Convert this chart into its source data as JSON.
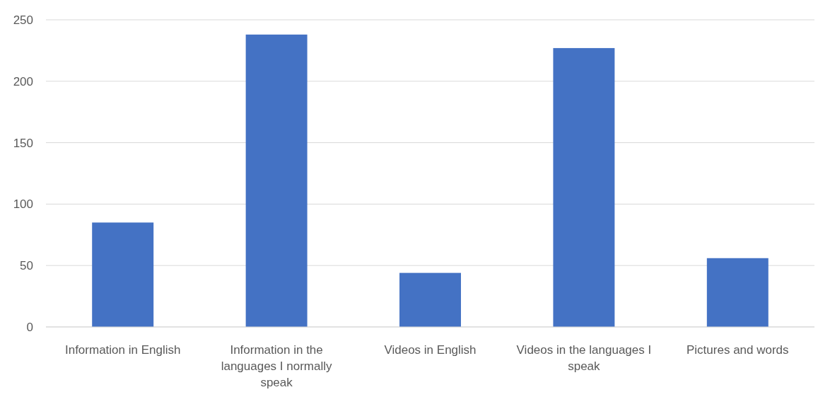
{
  "chart_data": {
    "type": "bar",
    "categories": [
      "Information in English",
      "Information in the languages I normally speak",
      "Videos in English",
      "Videos in the languages I speak",
      "Pictures and words"
    ],
    "values": [
      85,
      238,
      44,
      227,
      56
    ],
    "color": "#4472c4",
    "ylim": [
      0,
      250
    ],
    "yticks": [
      0,
      50,
      100,
      150,
      200,
      250
    ],
    "grid": "y"
  }
}
